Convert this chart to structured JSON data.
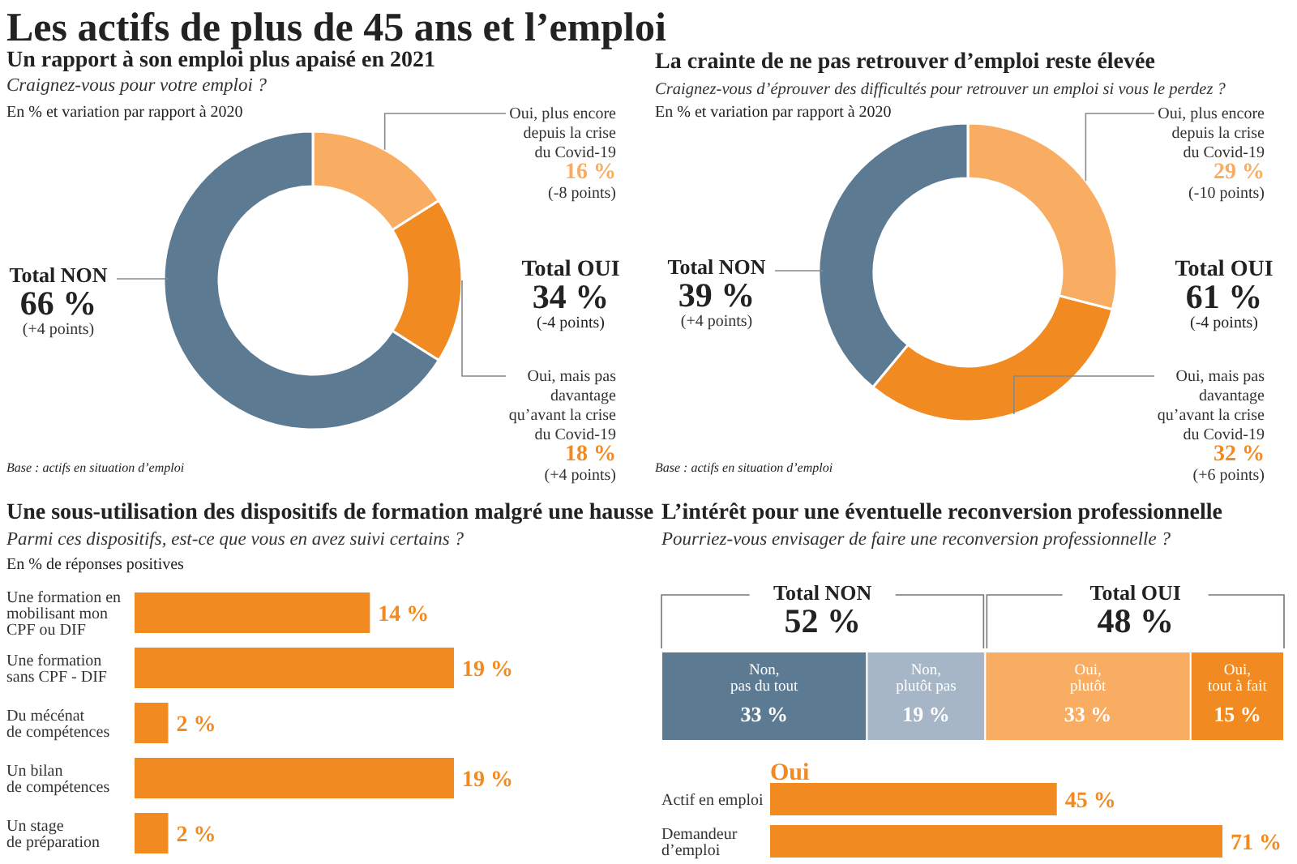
{
  "chart_data": [
    {
      "type": "donut",
      "title": "Un rapport à son emploi plus apaisé en 2021",
      "subtitle": "Craignez-vous pour votre emploi ?",
      "categories": [
        "Oui, plus encore\ndepuis la crise\ndu Covid-19",
        "Oui, mais pas\ndavantage\nqu’avant la crise\ndu Covid-19",
        "Total NON"
      ],
      "values": [
        16,
        18,
        66
      ],
      "colors": [
        "#f8ad62",
        "#f28a22",
        "#5d7a93"
      ],
      "value_labels": [
        "16 %",
        "18 %",
        "66 %"
      ],
      "annotations": [
        "Les actifs de plus de 45 ans et l’emploi",
        "En % et variation par rapport à 2020",
        "Total OUI",
        "34 %",
        "(-4 points)",
        "Base : actifs en situation d’emploi",
        {
          "text": "(-8 points)",
          "x": "Oui, plus encore\ndepuis la crise\ndu Covid-19"
        },
        {
          "text": "(+4 points)",
          "x": "Oui, mais pas\ndavantage\nqu’avant la crise\ndu Covid-19"
        },
        {
          "text": "(+4 points)",
          "x": "Total NON"
        }
      ]
    },
    {
      "type": "donut",
      "title": "La crainte de ne pas retrouver d’emploi reste élevée",
      "subtitle": "Craignez-vous d’éprouver des difficultés pour retrouver un emploi si vous le perdez ?",
      "categories": [
        "Oui, plus encore\ndepuis la crise\ndu Covid-19",
        "Oui, mais pas\ndavantage\nqu’avant la crise\ndu Covid-19",
        "Total NON"
      ],
      "values": [
        29,
        32,
        39
      ],
      "colors": [
        "#f8ad62",
        "#f28a22",
        "#5d7a93"
      ],
      "value_labels": [
        "29 %",
        "32 %",
        "39 %"
      ],
      "annotations": [
        "En % et variation par rapport à 2020",
        "Total OUI",
        "61 %",
        "(-4 points)",
        "Base : actifs en situation d’emploi",
        {
          "text": "(-10 points)",
          "x": "Oui, plus encore\ndepuis la crise\ndu Covid-19"
        },
        {
          "text": "(+6 points)",
          "x": "Oui, mais pas\ndavantage\nqu’avant la crise\ndu Covid-19"
        },
        {
          "text": "(+4 points)",
          "x": "Total NON"
        }
      ]
    },
    {
      "type": "bar",
      "orientation": "horizontal",
      "title": "Une sous-utilisation des dispositifs de formation malgré une hausse",
      "subtitle": "Parmi ces dispositifs, est-ce que vous en avez suivi certains ?",
      "categories": [
        "Une formation en\nmobilisant mon\nCPF ou DIF",
        "Une formation\nsans CPF - DIF",
        "Du mécénat\nde compétences",
        "Un bilan\nde compétences",
        "Un stage\nde préparation"
      ],
      "values": [
        14,
        19,
        2,
        19,
        2
      ],
      "color": "#f28a22",
      "value_labels": [
        "14 %",
        "19 %",
        "2 %",
        "19 %",
        "2 %"
      ],
      "annotations": [
        "En % de réponses positives"
      ]
    },
    {
      "type": "bar",
      "orientation": "horizontal",
      "stacked": true,
      "title": "L’intérêt pour une éventuelle reconversion professionnelle",
      "subtitle": "Pourriez-vous envisager de faire une reconversion professionnelle ?",
      "categories": [
        null
      ],
      "series": [
        {
          "name": "Non,\npas du tout",
          "color": "#5d7a93",
          "values": [
            33
          ],
          "value_labels": [
            "33 %"
          ]
        },
        {
          "name": "Non,\nplutôt pas",
          "color": "#a6b6c6",
          "values": [
            19
          ],
          "value_labels": [
            "19 %"
          ]
        },
        {
          "name": "Oui,\nplutôt",
          "color": "#f8ad62",
          "values": [
            33
          ],
          "value_labels": [
            "33 %"
          ]
        },
        {
          "name": "Oui,\ntout à fait",
          "color": "#f28a22",
          "values": [
            15
          ],
          "value_labels": [
            "15 %"
          ]
        }
      ],
      "annotations": [
        "Total NON",
        "52 %",
        "Total OUI",
        "48 %"
      ]
    },
    {
      "type": "bar",
      "orientation": "horizontal",
      "title": "Oui",
      "categories": [
        "Actif en emploi",
        "Demandeur\nd’emploi"
      ],
      "values": [
        45,
        71
      ],
      "color": "#f28a22",
      "value_labels": [
        "45 %",
        "71 %"
      ]
    }
  ]
}
